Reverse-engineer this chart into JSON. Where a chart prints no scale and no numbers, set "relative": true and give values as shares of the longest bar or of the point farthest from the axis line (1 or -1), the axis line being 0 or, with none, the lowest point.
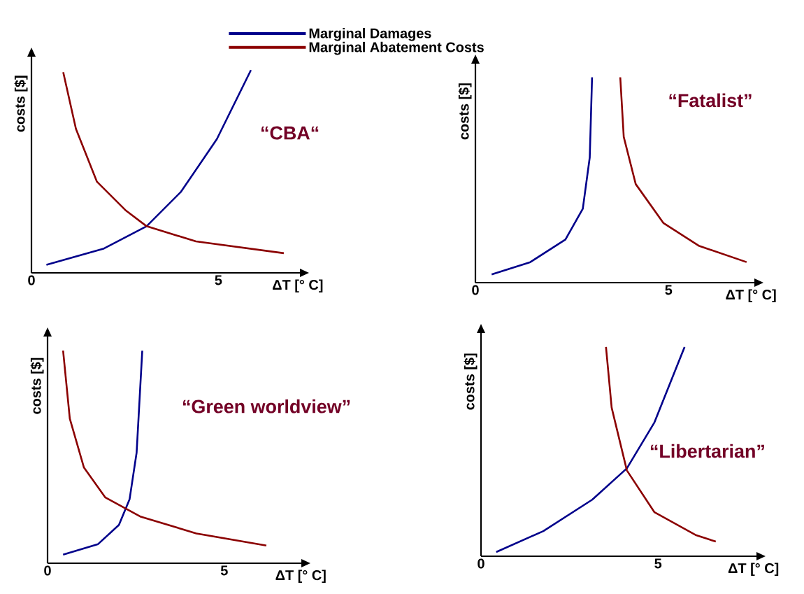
{
  "chart_data": [
    {
      "type": "line",
      "title": "“CBA“",
      "xlabel": "ΔT [° C]",
      "ylabel": "costs [$]",
      "relative": true,
      "xlim": [
        0,
        7.2
      ],
      "xticks": [
        0,
        5
      ],
      "tick_labels": "x",
      "legend": "top",
      "series": [
        {
          "name": "Marginal Damages",
          "color": "#00008b",
          "x": [
            0.4,
            1.94,
            3.08,
            4.0,
            4.96,
            5.87
          ],
          "values": [
            0.04,
            0.12,
            0.23,
            0.4,
            0.66,
            1.0
          ]
        },
        {
          "name": "Marginal Abatement Costs",
          "color": "#8b0000",
          "x": [
            0.85,
            1.19,
            1.75,
            2.51,
            3.08,
            4.4,
            6.75
          ],
          "values": [
            0.99,
            0.71,
            0.45,
            0.31,
            0.23,
            0.155,
            0.097
          ]
        }
      ]
    },
    {
      "type": "line",
      "title": "“Fatalist”",
      "xlabel": "ΔT [° C]",
      "ylabel": "costs [$]",
      "relative": true,
      "xlim": [
        0,
        7.24
      ],
      "xticks": [
        0,
        5
      ],
      "tick_labels": "x",
      "series": [
        {
          "color": "#00008b",
          "x": [
            0.42,
            1.42,
            2.33,
            2.78,
            2.96,
            3.02
          ],
          "values": [
            0.04,
            0.1,
            0.21,
            0.36,
            0.61,
            1.0
          ]
        },
        {
          "color": "#8b0000",
          "x": [
            3.75,
            3.84,
            4.15,
            4.87,
            5.78,
            7.02
          ],
          "values": [
            1.0,
            0.71,
            0.48,
            0.29,
            0.18,
            0.1
          ]
        }
      ]
    },
    {
      "type": "line",
      "title": "“Green worldview”",
      "xlabel": "ΔT [° C]",
      "ylabel": "costs [$]",
      "relative": true,
      "xlim": [
        0,
        7.2
      ],
      "xticks": [
        0,
        5
      ],
      "tick_labels": "x",
      "series": [
        {
          "color": "#00008b",
          "x": [
            0.44,
            1.43,
            2.02,
            2.32,
            2.52,
            2.68
          ],
          "values": [
            0.04,
            0.09,
            0.18,
            0.3,
            0.52,
            1.0
          ]
        },
        {
          "color": "#8b0000",
          "x": [
            0.44,
            0.63,
            1.03,
            1.63,
            2.62,
            4.21,
            6.19
          ],
          "values": [
            1.0,
            0.68,
            0.45,
            0.31,
            0.22,
            0.14,
            0.083
          ]
        }
      ]
    },
    {
      "type": "line",
      "title": "“Libertarian”",
      "xlabel": "ΔT [° C]",
      "ylabel": "costs [$]",
      "relative": true,
      "xlim": [
        0,
        7.8
      ],
      "xticks": [
        0,
        5
      ],
      "tick_labels": "x",
      "series": [
        {
          "color": "#00008b",
          "x": [
            0.43,
            1.76,
            3.14,
            4.12,
            4.9,
            5.75
          ],
          "values": [
            0.02,
            0.12,
            0.27,
            0.42,
            0.64,
            1.0
          ]
        },
        {
          "color": "#8b0000",
          "x": [
            3.53,
            3.69,
            4.12,
            4.9,
            6.08,
            6.63
          ],
          "values": [
            1.0,
            0.71,
            0.41,
            0.21,
            0.1,
            0.07
          ]
        }
      ]
    }
  ]
}
